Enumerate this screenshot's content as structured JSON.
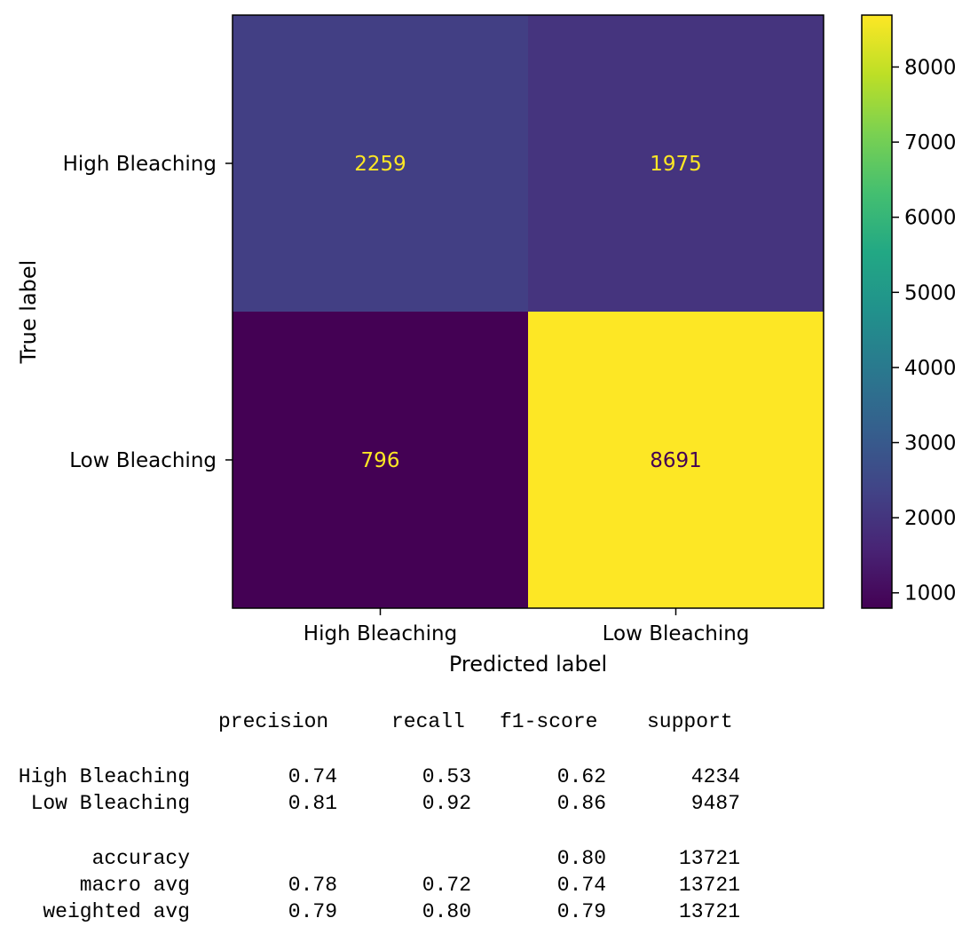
{
  "chart_data": {
    "type": "heatmap",
    "xlabel": "Predicted label",
    "ylabel": "True label",
    "x_categories": [
      "High Bleaching",
      "Low Bleaching"
    ],
    "y_categories": [
      "High Bleaching",
      "Low Bleaching"
    ],
    "values": [
      [
        2259,
        1975
      ],
      [
        796,
        8691
      ]
    ],
    "colormap": "viridis",
    "colorbar": {
      "range": [
        796,
        8691
      ],
      "ticks": [
        1000,
        2000,
        3000,
        4000,
        5000,
        6000,
        7000,
        8000
      ]
    }
  },
  "report": {
    "headers": [
      "precision",
      "recall",
      "f1-score",
      "support"
    ],
    "rows": [
      {
        "label": "High Bleaching",
        "precision": "0.74",
        "recall": "0.53",
        "f1": "0.62",
        "support": "4234"
      },
      {
        "label": "Low Bleaching",
        "precision": "0.81",
        "recall": "0.92",
        "f1": "0.86",
        "support": "9487"
      },
      {
        "label": "accuracy",
        "precision": "",
        "recall": "",
        "f1": "0.80",
        "support": "13721"
      },
      {
        "label": "macro avg",
        "precision": "0.78",
        "recall": "0.72",
        "f1": "0.74",
        "support": "13721"
      },
      {
        "label": "weighted avg",
        "precision": "0.79",
        "recall": "0.80",
        "f1": "0.79",
        "support": "13721"
      }
    ]
  }
}
